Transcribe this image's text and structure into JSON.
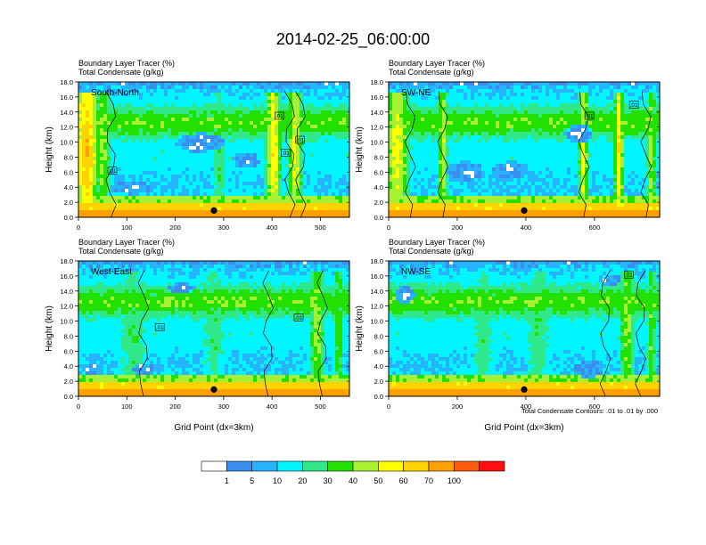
{
  "figure": {
    "title": "2014-02-25_06:00:00",
    "contour_note": "Total Condensate Contours: .01 to .01 by .000"
  },
  "colorbar": {
    "colors": [
      "#ffffff",
      "#3a8ef0",
      "#27b4ff",
      "#00f5ff",
      "#2ee88a",
      "#22e000",
      "#a8f032",
      "#ffff00",
      "#ffd200",
      "#ffa000",
      "#ff5a10",
      "#ff0f0f"
    ],
    "tick_labels": [
      "1",
      "5",
      "10",
      "20",
      "30",
      "40",
      "50",
      "60",
      "70",
      "100"
    ]
  },
  "chart_data": [
    {
      "type": "heatmap",
      "panel": "top-left",
      "label": "South-North",
      "title_line1": "Boundary Layer Tracer   (%)",
      "title_line2": "Total Condensate   (g/kg)",
      "ylabel": "Height (km)",
      "xlabel": "",
      "xlim": [
        0,
        560
      ],
      "ylim": [
        0,
        18
      ],
      "xticks": [
        0,
        100,
        200,
        300,
        400,
        500
      ],
      "yticks": [
        0,
        2,
        4,
        6,
        8,
        10,
        12,
        14,
        16,
        18
      ],
      "ytick_labels": [
        "0.0",
        "2.0",
        "4.0",
        "6.0",
        "8.0",
        "10.0",
        "12.0",
        "14.0",
        "16.0",
        "18.0"
      ],
      "marker_x": 280,
      "contour_labels": [
        {
          "x": 415,
          "y": 13.5,
          "text": ".01"
        },
        {
          "x": 458,
          "y": 10.3,
          "text": ".01"
        },
        {
          "x": 428,
          "y": 8.6,
          "text": ".01"
        },
        {
          "x": 70,
          "y": 6.2,
          "text": ".01"
        }
      ]
    },
    {
      "type": "heatmap",
      "panel": "top-right",
      "label": "SW-NE",
      "title_line1": "Boundary Layer Tracer   (%)",
      "title_line2": "Total Condensate   (g/kg)",
      "ylabel": "Height (km)",
      "xlabel": "",
      "xlim": [
        0,
        790
      ],
      "ylim": [
        0,
        18
      ],
      "xticks": [
        0,
        200,
        400,
        600
      ],
      "yticks": [
        0,
        2,
        4,
        6,
        8,
        10,
        12,
        14,
        16,
        18
      ],
      "ytick_labels": [
        "0.0",
        "2.0",
        "4.0",
        "6.0",
        "8.0",
        "10.0",
        "12.0",
        "14.0",
        "16.0",
        "18.0"
      ],
      "marker_x": 395,
      "contour_labels": [
        {
          "x": 585,
          "y": 13.5,
          "text": ".01"
        },
        {
          "x": 715,
          "y": 15.0,
          "text": ".01"
        }
      ]
    },
    {
      "type": "heatmap",
      "panel": "bottom-left",
      "label": "West-East",
      "title_line1": "Boundary Layer Tracer   (%)",
      "title_line2": "Total Condensate   (g/kg)",
      "ylabel": "Height (km)",
      "xlabel": "Grid Point (dx=3km)",
      "xlim": [
        0,
        560
      ],
      "ylim": [
        0,
        18
      ],
      "xticks": [
        0,
        100,
        200,
        300,
        400,
        500
      ],
      "yticks": [
        0,
        2,
        4,
        6,
        8,
        10,
        12,
        14,
        16,
        18
      ],
      "ytick_labels": [
        "0.0",
        "2.0",
        "4.0",
        "6.0",
        "8.0",
        "10.0",
        "12.0",
        "14.0",
        "16.0",
        "18.0"
      ],
      "marker_x": 280,
      "contour_labels": [
        {
          "x": 168,
          "y": 9.2,
          "text": ".01"
        },
        {
          "x": 455,
          "y": 10.5,
          "text": ".01"
        }
      ]
    },
    {
      "type": "heatmap",
      "panel": "bottom-right",
      "label": "NW-SE",
      "title_line1": "Boundary Layer Tracer   (%)",
      "title_line2": "Total Condensate   (g/kg)",
      "ylabel": "Height (km)",
      "xlabel": "Grid Point (dx=3km)",
      "xlim": [
        0,
        790
      ],
      "ylim": [
        0,
        18
      ],
      "xticks": [
        0,
        200,
        400,
        600
      ],
      "yticks": [
        0,
        2,
        4,
        6,
        8,
        10,
        12,
        14,
        16,
        18
      ],
      "ytick_labels": [
        "0.0",
        "2.0",
        "4.0",
        "6.0",
        "8.0",
        "10.0",
        "12.0",
        "14.0",
        "16.0",
        "18.0"
      ],
      "marker_x": 395,
      "contour_labels": [
        {
          "x": 700,
          "y": 16.2,
          "text": ".01"
        }
      ]
    }
  ]
}
